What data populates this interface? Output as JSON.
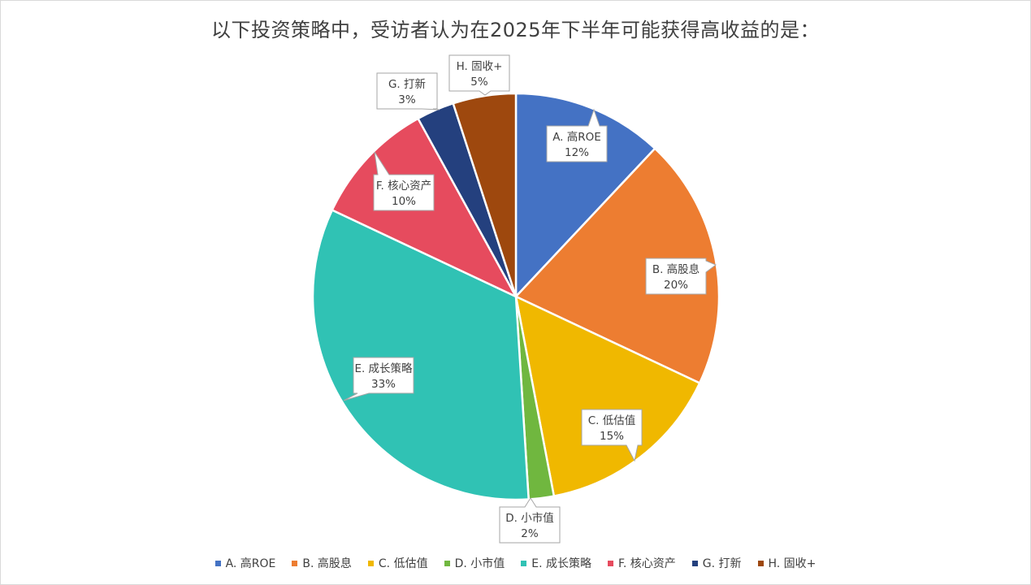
{
  "title": "以下投资策略中，受访者认为在2025年下半年可能获得高收益的是：",
  "chart_data": {
    "type": "pie",
    "title": "以下投资策略中，受访者认为在2025年下半年可能获得高收益的是：",
    "legend_position": "bottom",
    "start_angle": "12 o'clock, clockwise",
    "categories": [
      "A. 高ROE",
      "B. 高股息",
      "C. 低估值",
      "D. 小市值",
      "E. 成长策略",
      "F. 核心资产",
      "G. 打新",
      "H. 固收+"
    ],
    "values": [
      12,
      20,
      15,
      2,
      33,
      10,
      3,
      5
    ],
    "labels": [
      "12%",
      "20%",
      "15%",
      "2%",
      "33%",
      "10%",
      "3%",
      "5%"
    ],
    "colors": [
      "#4472C4",
      "#ED7D31",
      "#F0B800",
      "#70B73F",
      "#30C2B4",
      "#E64B5E",
      "#24407E",
      "#9E480E"
    ]
  }
}
